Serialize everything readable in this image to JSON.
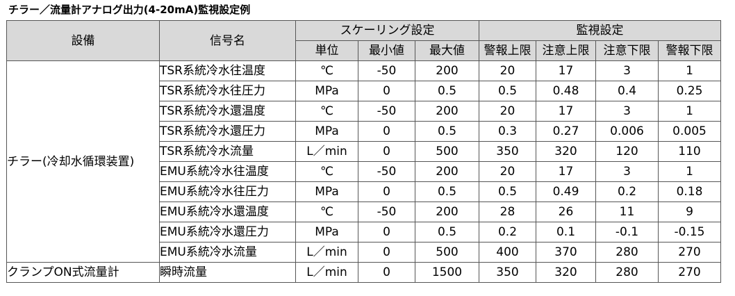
{
  "title": "チラー／流量計アナログ出力(4-20mA)監視設定例",
  "headers": {
    "equipment": "設備",
    "signal": "信号名",
    "scaling": "スケーリング設定",
    "monitor": "監視設定",
    "unit": "単位",
    "min": "最小値",
    "max": "最大値",
    "alarm_high": "警報上限",
    "caution_high": "注意上限",
    "caution_low": "注意下限",
    "alarm_low": "警報下限"
  },
  "groups": [
    {
      "equipment": "チラー(冷却水循環装置)",
      "rows": [
        {
          "signal": "TSR系統冷水往温度",
          "unit": "℃",
          "min": "-50",
          "max": "200",
          "alarm_high": "20",
          "caution_high": "17",
          "caution_low": "3",
          "alarm_low": "1"
        },
        {
          "signal": "TSR系統冷水往圧力",
          "unit": "MPa",
          "min": "0",
          "max": "0.5",
          "alarm_high": "0.5",
          "caution_high": "0.48",
          "caution_low": "0.4",
          "alarm_low": "0.25"
        },
        {
          "signal": "TSR系統冷水還温度",
          "unit": "℃",
          "min": "-50",
          "max": "200",
          "alarm_high": "20",
          "caution_high": "17",
          "caution_low": "3",
          "alarm_low": "1"
        },
        {
          "signal": "TSR系統冷水還圧力",
          "unit": "MPa",
          "min": "0",
          "max": "0.5",
          "alarm_high": "0.3",
          "caution_high": "0.27",
          "caution_low": "0.006",
          "alarm_low": "0.005"
        },
        {
          "signal": "TSR系統冷水流量",
          "unit": "L／min",
          "min": "0",
          "max": "500",
          "alarm_high": "350",
          "caution_high": "320",
          "caution_low": "120",
          "alarm_low": "110"
        },
        {
          "signal": "EMU系統冷水往温度",
          "unit": "℃",
          "min": "-50",
          "max": "200",
          "alarm_high": "20",
          "caution_high": "17",
          "caution_low": "3",
          "alarm_low": "1"
        },
        {
          "signal": "EMU系統冷水往圧力",
          "unit": "MPa",
          "min": "0",
          "max": "0.5",
          "alarm_high": "0.5",
          "caution_high": "0.49",
          "caution_low": "0.2",
          "alarm_low": "0.18"
        },
        {
          "signal": "EMU系統冷水還温度",
          "unit": "℃",
          "min": "-50",
          "max": "200",
          "alarm_high": "28",
          "caution_high": "26",
          "caution_low": "11",
          "alarm_low": "9"
        },
        {
          "signal": "EMU系統冷水還圧力",
          "unit": "MPa",
          "min": "0",
          "max": "0.5",
          "alarm_high": "0.2",
          "caution_high": "0.1",
          "caution_low": "-0.1",
          "alarm_low": "-0.15"
        },
        {
          "signal": "EMU系統冷水流量",
          "unit": "L／min",
          "min": "0",
          "max": "500",
          "alarm_high": "400",
          "caution_high": "370",
          "caution_low": "280",
          "alarm_low": "270"
        }
      ]
    },
    {
      "equipment": "クランプON式流量計",
      "rows": [
        {
          "signal": "瞬時流量",
          "unit": "L／min",
          "min": "0",
          "max": "1500",
          "alarm_high": "350",
          "caution_high": "320",
          "caution_low": "280",
          "alarm_low": "270"
        }
      ]
    }
  ]
}
